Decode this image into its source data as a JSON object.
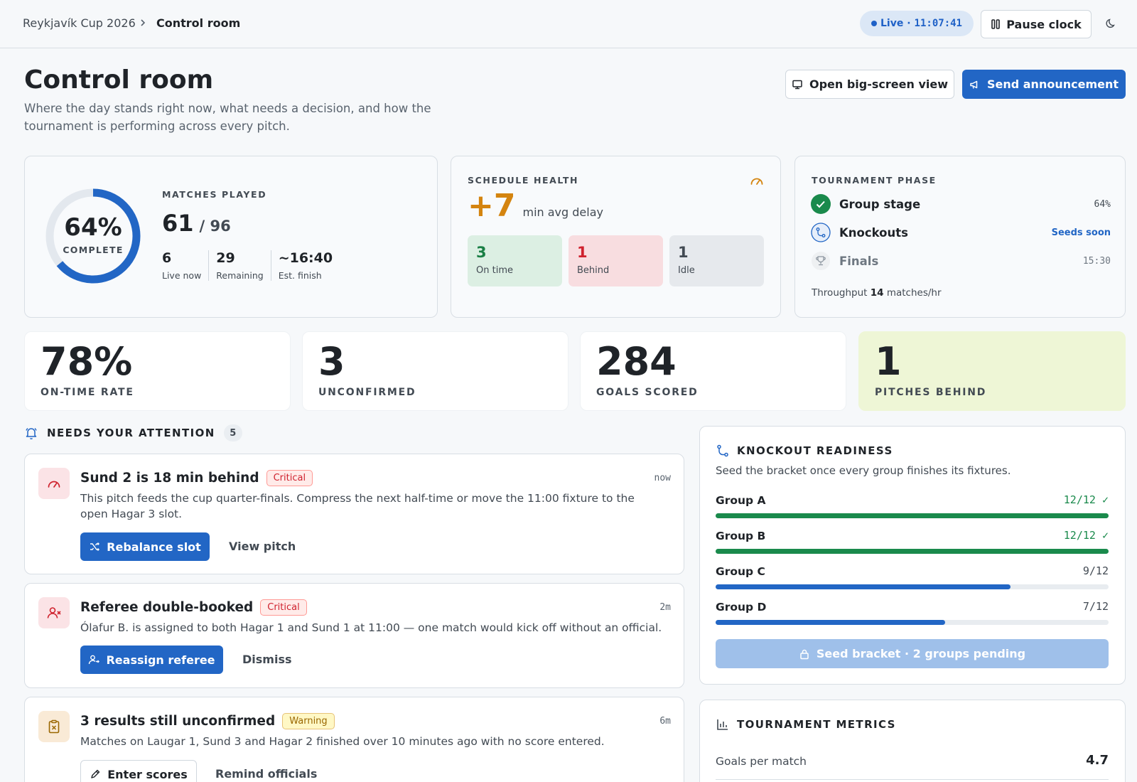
{
  "breadcrumb": {
    "parent": "Reykjavík Cup 2026",
    "current": "Control room"
  },
  "topbar": {
    "live_label": "Live ·",
    "clock": "11:07:41",
    "pause_label": "Pause clock"
  },
  "header": {
    "title": "Control room",
    "subtitle": "Where the day stands right now, what needs a decision, and how the tournament is performing across every pitch.",
    "bigscreen_label": "Open big-screen view",
    "announce_label": "Send announcement"
  },
  "progress": {
    "percent_label": "64%",
    "percent_value": 64,
    "complete_label": "COMPLETE",
    "caption": "MATCHES PLAYED",
    "played": "61",
    "total": "/ 96",
    "stats": [
      {
        "value": "6",
        "label": "Live now"
      },
      {
        "value": "29",
        "label": "Remaining"
      },
      {
        "value": "~16:40",
        "label": "Est. finish"
      }
    ]
  },
  "schedule": {
    "caption": "SCHEDULE HEALTH",
    "delay": "+7",
    "delay_label": "min avg delay",
    "pills": [
      {
        "value": "3",
        "label": "On time"
      },
      {
        "value": "1",
        "label": "Behind"
      },
      {
        "value": "1",
        "label": "Idle"
      }
    ]
  },
  "phase": {
    "caption": "TOURNAMENT PHASE",
    "rows": [
      {
        "name": "Group stage",
        "meta": "64%"
      },
      {
        "name": "Knockouts",
        "meta": "Seeds soon"
      },
      {
        "name": "Finals",
        "meta": "15:30"
      }
    ],
    "throughput_prefix": "Throughput",
    "throughput_value": "14",
    "throughput_suffix": "matches/hr"
  },
  "tiles": [
    {
      "value": "78%",
      "label": "ON-TIME RATE"
    },
    {
      "value": "3",
      "label": "UNCONFIRMED"
    },
    {
      "value": "284",
      "label": "GOALS SCORED"
    },
    {
      "value": "1",
      "label": "PITCHES BEHIND"
    }
  ],
  "attention": {
    "caption": "NEEDS YOUR ATTENTION",
    "count": "5",
    "items": [
      {
        "title": "Sund 2 is 18 min behind",
        "tag": "Critical",
        "time": "now",
        "desc": "This pitch feeds the cup quarter-finals. Compress the next half-time or move the 11:00 fixture to the open Hagar 3 slot.",
        "primary": "Rebalance slot",
        "secondary": "View pitch"
      },
      {
        "title": "Referee double-booked",
        "tag": "Critical",
        "time": "2m",
        "desc": "Ólafur B. is assigned to both Hagar 1 and Sund 1 at 11:00 — one match would kick off without an official.",
        "primary": "Reassign referee",
        "secondary": "Dismiss"
      },
      {
        "title": "3 results still unconfirmed",
        "tag": "Warning",
        "time": "6m",
        "desc": "Matches on Laugar 1, Sund 3 and Hagar 2 finished over 10 minutes ago with no score entered.",
        "primary": "Enter scores",
        "secondary": "Remind officials"
      }
    ]
  },
  "knockout": {
    "caption": "KNOCKOUT READINESS",
    "subtitle": "Seed the bracket once every group finishes its fixtures.",
    "groups": [
      {
        "name": "Group A",
        "value": "12/12 ✓",
        "fraction": 1.0
      },
      {
        "name": "Group B",
        "value": "12/12 ✓",
        "fraction": 1.0
      },
      {
        "name": "Group C",
        "value": "9/12",
        "fraction": 0.75
      },
      {
        "name": "Group D",
        "value": "7/12",
        "fraction": 0.5833
      }
    ],
    "seed_label": "Seed bracket · 2 groups pending"
  },
  "metrics": {
    "caption": "TOURNAMENT METRICS",
    "rows": [
      {
        "label": "Goals per match",
        "value": "4.7"
      }
    ]
  },
  "colors": {
    "accent": "#2266c5",
    "success": "#1a8a4c",
    "danger": "#cf222e",
    "warning": "#d4840f",
    "phase_tile": "#eef6d6"
  }
}
